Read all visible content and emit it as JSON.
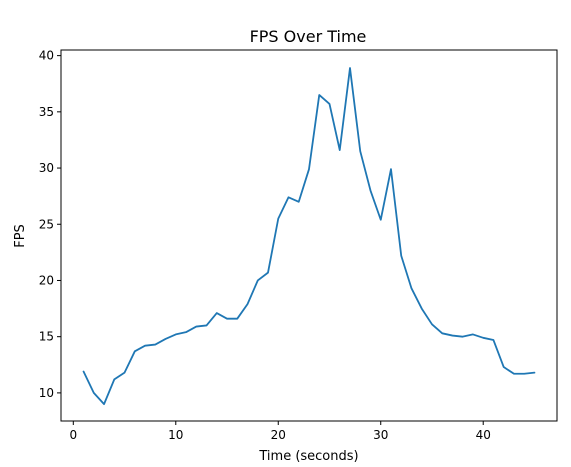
{
  "chart_data": {
    "type": "line",
    "title": "FPS Over Time",
    "xlabel": "Time (seconds)",
    "ylabel": "FPS",
    "xlim": [
      -1.2,
      47.2
    ],
    "ylim": [
      7.5,
      40.5
    ],
    "xticks": [
      0,
      10,
      20,
      30,
      40
    ],
    "yticks": [
      10,
      15,
      20,
      25,
      30,
      35,
      40
    ],
    "grid": false,
    "color": "#1f77b4",
    "series": [
      {
        "x": [
          1,
          2,
          3,
          4,
          5,
          6,
          7,
          8,
          9,
          10,
          11,
          12,
          13,
          14,
          15,
          16,
          17,
          18,
          19,
          20,
          21,
          22,
          23,
          24,
          25,
          26,
          27,
          28,
          29,
          30,
          31,
          32,
          33,
          34,
          35,
          36,
          37,
          38,
          39,
          40,
          41,
          42,
          43,
          44,
          45
        ],
        "values": [
          11.9,
          10.0,
          9.0,
          11.2,
          11.8,
          13.7,
          14.2,
          14.3,
          14.8,
          15.2,
          15.4,
          15.9,
          16.0,
          17.1,
          16.6,
          16.6,
          17.9,
          20.0,
          20.7,
          25.5,
          27.4,
          27.0,
          29.9,
          36.5,
          35.7,
          31.6,
          38.9,
          31.5,
          28.0,
          25.4,
          29.9,
          22.2,
          19.3,
          17.5,
          16.1,
          15.3,
          15.1,
          15.0,
          15.2,
          14.9,
          14.7,
          12.3,
          11.7,
          11.7,
          11.8
        ]
      }
    ]
  }
}
